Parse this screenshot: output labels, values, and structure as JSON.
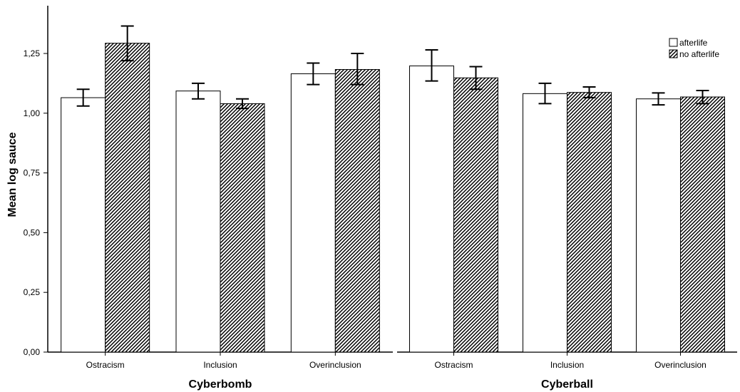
{
  "chart_data": {
    "type": "bar",
    "ylabel": "Mean log sauce",
    "ylim": [
      0,
      1.45
    ],
    "yticks": [
      "0,00",
      "0,25",
      "0,50",
      "0,75",
      "1,00",
      "1,25"
    ],
    "ytick_values": [
      0,
      0.25,
      0.5,
      0.75,
      1.0,
      1.25
    ],
    "grid": false,
    "legend_position": "top-right",
    "legend": [
      {
        "name": "afterlife",
        "pattern": "solid-white"
      },
      {
        "name": "no afterlife",
        "pattern": "diagonal-hatch"
      }
    ],
    "categories": [
      "Ostracism",
      "Inclusion",
      "Overinclusion"
    ],
    "panels": [
      {
        "label": "Cyberbomb",
        "series": [
          {
            "name": "afterlife",
            "values": [
              1.065,
              1.093,
              1.165
            ],
            "err_low": [
              1.03,
              1.06,
              1.12
            ],
            "err_high": [
              1.1,
              1.125,
              1.21
            ]
          },
          {
            "name": "no afterlife",
            "values": [
              1.293,
              1.04,
              1.183
            ],
            "err_low": [
              1.22,
              1.02,
              1.12
            ],
            "err_high": [
              1.365,
              1.06,
              1.25
            ]
          }
        ]
      },
      {
        "label": "Cyberball",
        "series": [
          {
            "name": "afterlife",
            "values": [
              1.198,
              1.082,
              1.06
            ],
            "err_low": [
              1.135,
              1.04,
              1.035
            ],
            "err_high": [
              1.265,
              1.125,
              1.085
            ]
          },
          {
            "name": "no afterlife",
            "values": [
              1.148,
              1.087,
              1.068
            ],
            "err_low": [
              1.1,
              1.065,
              1.04
            ],
            "err_high": [
              1.195,
              1.11,
              1.095
            ]
          }
        ]
      }
    ],
    "colors": {
      "bar_fill_plain": "#ffffff",
      "bar_stroke": "#000000",
      "hatch": "#000000",
      "background": "#ffffff"
    }
  }
}
